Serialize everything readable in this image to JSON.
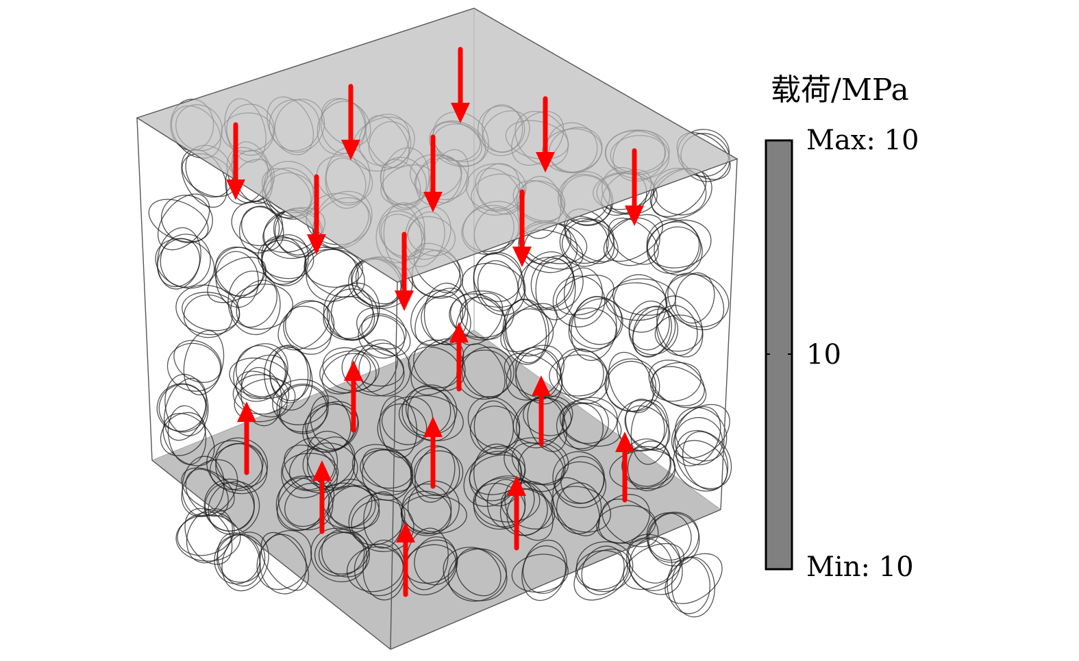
{
  "legend": {
    "title": "载荷/MPa",
    "max_label": "Max: 10",
    "mid_label": "10",
    "min_label": "Min: 10",
    "bar_color": "#808080"
  },
  "colors": {
    "face": "#bdbdbd",
    "edge": "#555555",
    "fiber": "#1a1a1a",
    "arrow": "#ff0000"
  },
  "load": {
    "top_direction": "down",
    "bottom_direction": "up",
    "value_mpa": 10
  }
}
